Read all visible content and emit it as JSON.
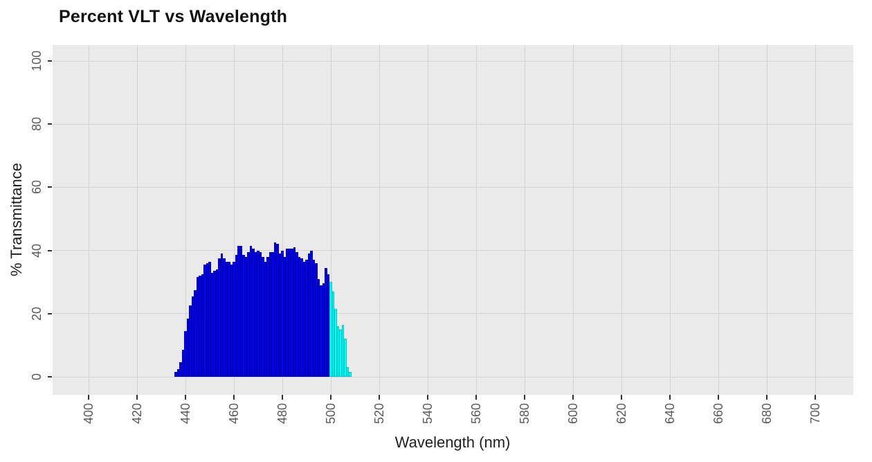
{
  "title": "Percent VLT vs Wavelength",
  "axes": {
    "x_title": "Wavelength (nm)",
    "y_title": "% Transmittance"
  },
  "panel": {
    "background": "#EAEAEA",
    "gridline_color": "#D4D4D4",
    "tick_color": "#333333",
    "tick_label_color": "#595959",
    "title_color": "#111111",
    "axis_title_color": "#1F1F1F"
  },
  "chart_data": {
    "type": "bar",
    "title": "Percent VLT vs Wavelength",
    "xlabel": "Wavelength (nm)",
    "ylabel": "% Transmittance",
    "xlim": [
      385,
      716
    ],
    "ylim": [
      -5.7,
      105
    ],
    "x_ticks": [
      400,
      420,
      440,
      460,
      480,
      500,
      520,
      540,
      560,
      580,
      600,
      620,
      640,
      660,
      680,
      700
    ],
    "y_ticks": [
      0,
      20,
      40,
      60,
      80,
      100
    ],
    "grid": "major-only",
    "legend": "none",
    "bar_width_nm": 1,
    "colors": {
      "blue": {
        "fill": "#0000FF",
        "border": "#0000AA"
      },
      "cyan": {
        "fill": "#00FFFF",
        "border": "#00CCCC"
      }
    },
    "bars": [
      {
        "nm": 436,
        "value": 1.5,
        "color": "blue"
      },
      {
        "nm": 437,
        "value": 2.5,
        "color": "blue"
      },
      {
        "nm": 438,
        "value": 4.5,
        "color": "blue"
      },
      {
        "nm": 439,
        "value": 8.5,
        "color": "blue"
      },
      {
        "nm": 440,
        "value": 14.5,
        "color": "blue"
      },
      {
        "nm": 441,
        "value": 18.5,
        "color": "blue"
      },
      {
        "nm": 442,
        "value": 22.5,
        "color": "blue"
      },
      {
        "nm": 443,
        "value": 25.5,
        "color": "blue"
      },
      {
        "nm": 444,
        "value": 27.5,
        "color": "blue"
      },
      {
        "nm": 445,
        "value": 31.5,
        "color": "blue"
      },
      {
        "nm": 446,
        "value": 32,
        "color": "blue"
      },
      {
        "nm": 447,
        "value": 32.5,
        "color": "blue"
      },
      {
        "nm": 448,
        "value": 35.5,
        "color": "blue"
      },
      {
        "nm": 449,
        "value": 36,
        "color": "blue"
      },
      {
        "nm": 450,
        "value": 36.5,
        "color": "blue"
      },
      {
        "nm": 451,
        "value": 33,
        "color": "blue"
      },
      {
        "nm": 452,
        "value": 33.5,
        "color": "blue"
      },
      {
        "nm": 453,
        "value": 34,
        "color": "blue"
      },
      {
        "nm": 454,
        "value": 37.5,
        "color": "blue"
      },
      {
        "nm": 455,
        "value": 39,
        "color": "blue"
      },
      {
        "nm": 456,
        "value": 37.5,
        "color": "blue"
      },
      {
        "nm": 457,
        "value": 36.5,
        "color": "blue"
      },
      {
        "nm": 458,
        "value": 36.5,
        "color": "blue"
      },
      {
        "nm": 459,
        "value": 35.5,
        "color": "blue"
      },
      {
        "nm": 460,
        "value": 36.5,
        "color": "blue"
      },
      {
        "nm": 461,
        "value": 38.5,
        "color": "blue"
      },
      {
        "nm": 462,
        "value": 41.5,
        "color": "blue"
      },
      {
        "nm": 463,
        "value": 41.5,
        "color": "blue"
      },
      {
        "nm": 464,
        "value": 38.5,
        "color": "blue"
      },
      {
        "nm": 465,
        "value": 38,
        "color": "blue"
      },
      {
        "nm": 466,
        "value": 39.5,
        "color": "blue"
      },
      {
        "nm": 467,
        "value": 41.5,
        "color": "blue"
      },
      {
        "nm": 468,
        "value": 40.5,
        "color": "blue"
      },
      {
        "nm": 469,
        "value": 39.5,
        "color": "blue"
      },
      {
        "nm": 470,
        "value": 40,
        "color": "blue"
      },
      {
        "nm": 471,
        "value": 39.5,
        "color": "blue"
      },
      {
        "nm": 472,
        "value": 38,
        "color": "blue"
      },
      {
        "nm": 473,
        "value": 36.5,
        "color": "blue"
      },
      {
        "nm": 474,
        "value": 38,
        "color": "blue"
      },
      {
        "nm": 475,
        "value": 39.5,
        "color": "blue"
      },
      {
        "nm": 476,
        "value": 39.5,
        "color": "blue"
      },
      {
        "nm": 477,
        "value": 42.5,
        "color": "blue"
      },
      {
        "nm": 478,
        "value": 42,
        "color": "blue"
      },
      {
        "nm": 479,
        "value": 39,
        "color": "blue"
      },
      {
        "nm": 480,
        "value": 40,
        "color": "blue"
      },
      {
        "nm": 481,
        "value": 38,
        "color": "blue"
      },
      {
        "nm": 482,
        "value": 40.5,
        "color": "blue"
      },
      {
        "nm": 483,
        "value": 40.5,
        "color": "blue"
      },
      {
        "nm": 484,
        "value": 40.5,
        "color": "blue"
      },
      {
        "nm": 485,
        "value": 41,
        "color": "blue"
      },
      {
        "nm": 486,
        "value": 39.5,
        "color": "blue"
      },
      {
        "nm": 487,
        "value": 38,
        "color": "blue"
      },
      {
        "nm": 488,
        "value": 37.5,
        "color": "blue"
      },
      {
        "nm": 489,
        "value": 36.5,
        "color": "blue"
      },
      {
        "nm": 490,
        "value": 37,
        "color": "blue"
      },
      {
        "nm": 491,
        "value": 39,
        "color": "blue"
      },
      {
        "nm": 492,
        "value": 40,
        "color": "blue"
      },
      {
        "nm": 493,
        "value": 37,
        "color": "blue"
      },
      {
        "nm": 494,
        "value": 36,
        "color": "blue"
      },
      {
        "nm": 495,
        "value": 31,
        "color": "blue"
      },
      {
        "nm": 496,
        "value": 29,
        "color": "blue"
      },
      {
        "nm": 497,
        "value": 29.5,
        "color": "blue"
      },
      {
        "nm": 498,
        "value": 34.5,
        "color": "blue"
      },
      {
        "nm": 499,
        "value": 32.5,
        "color": "blue"
      },
      {
        "nm": 500,
        "value": 30,
        "color": "cyan"
      },
      {
        "nm": 501,
        "value": 27,
        "color": "cyan"
      },
      {
        "nm": 502,
        "value": 21.5,
        "color": "cyan"
      },
      {
        "nm": 503,
        "value": 16,
        "color": "cyan"
      },
      {
        "nm": 504,
        "value": 15,
        "color": "cyan"
      },
      {
        "nm": 505,
        "value": 16.5,
        "color": "cyan"
      },
      {
        "nm": 506,
        "value": 12,
        "color": "cyan"
      },
      {
        "nm": 507,
        "value": 3,
        "color": "cyan"
      },
      {
        "nm": 508,
        "value": 1.5,
        "color": "cyan"
      }
    ]
  }
}
